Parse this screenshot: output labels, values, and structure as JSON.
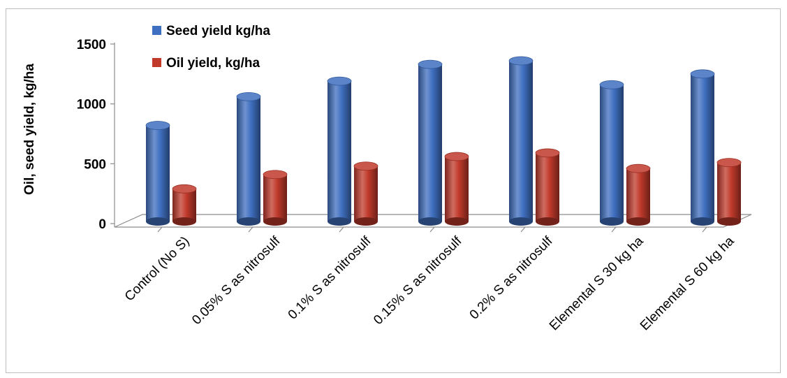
{
  "chart_data": {
    "type": "bar",
    "title": "",
    "ylabel": "Oil, seed yield, kg/ha",
    "xlabel": "",
    "ylim": [
      0,
      1500
    ],
    "yticks": [
      0,
      500,
      1000,
      1500
    ],
    "categories": [
      "Control (No S)",
      "0.05% S as nitrosulf",
      "0.1% S as nitrosulf",
      "0.15% S as nitrosulf",
      "0.2% S as nitrosulf",
      "Elemental S 30 kg ha",
      "Elemental S 60 kg ha"
    ],
    "series": [
      {
        "name": "Seed yield kg/ha",
        "values": [
          820,
          1060,
          1190,
          1330,
          1360,
          1160,
          1250
        ],
        "color": "#3f6fc0"
      },
      {
        "name": "Oil yield, kg/ha",
        "values": [
          290,
          410,
          480,
          560,
          590,
          460,
          510
        ],
        "color": "#c0392b"
      }
    ],
    "legend_position": "top-left",
    "grid": false
  }
}
